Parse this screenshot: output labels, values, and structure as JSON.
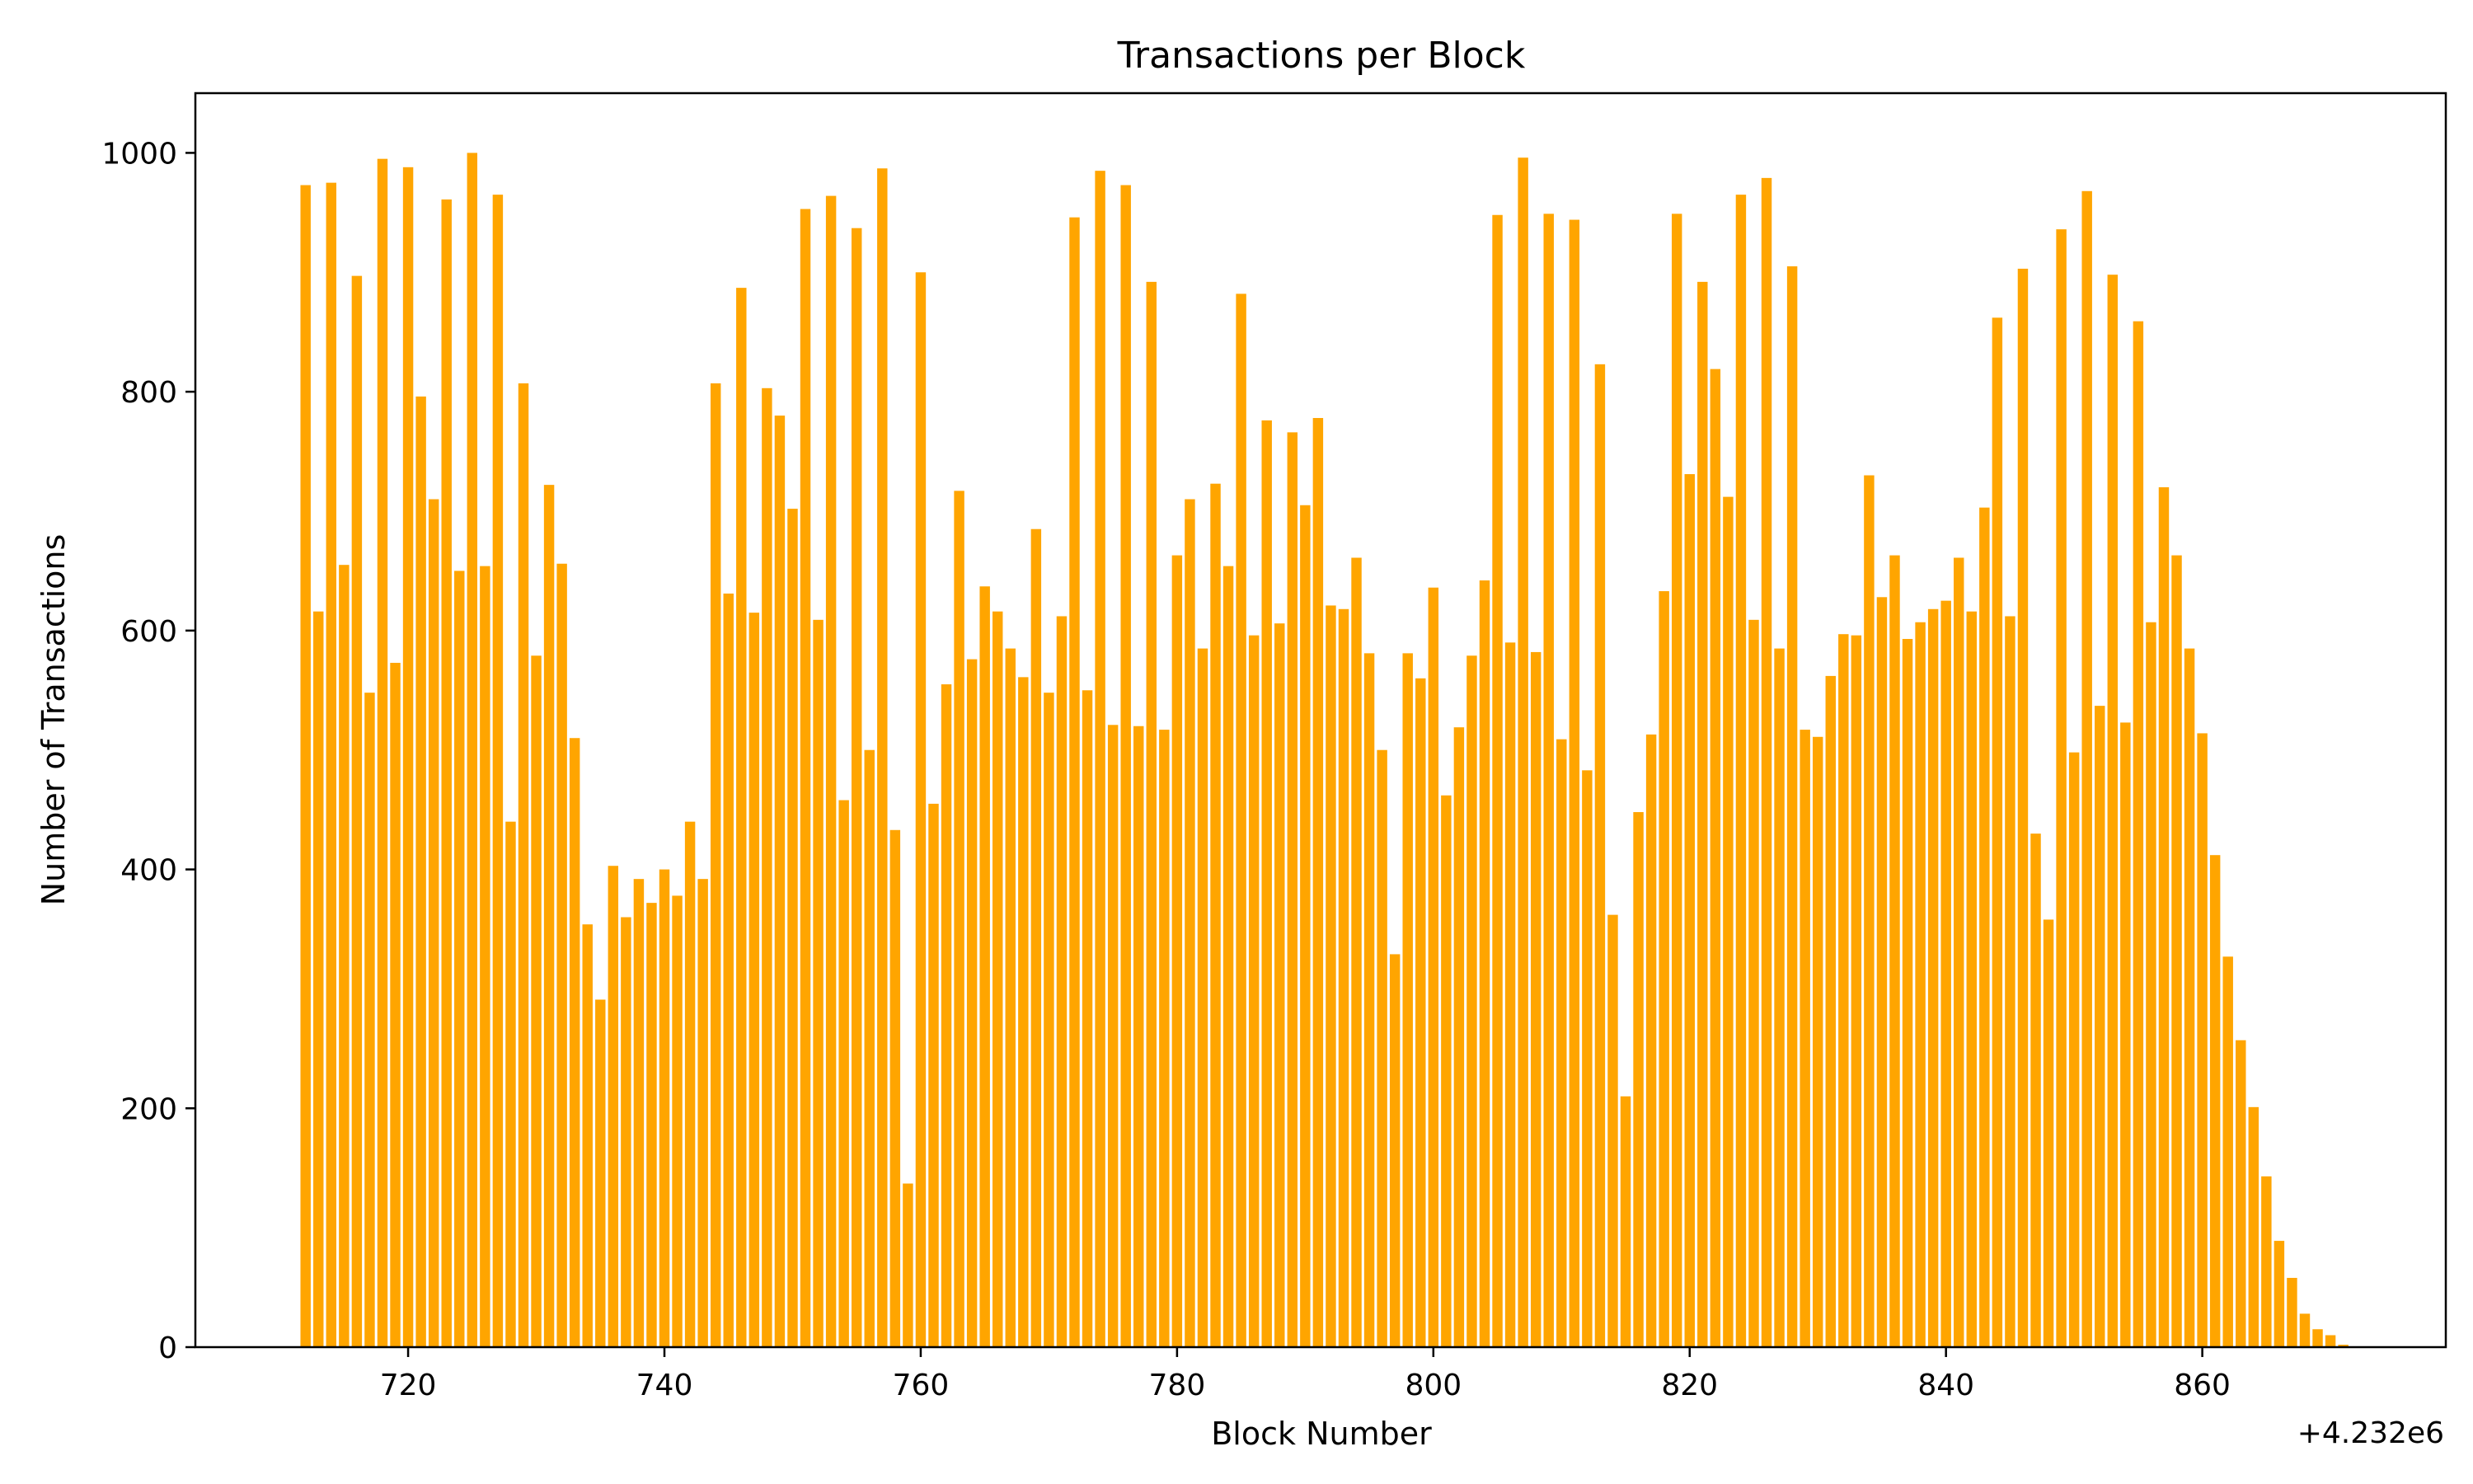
{
  "chart_data": {
    "type": "bar",
    "title": "Transactions per Block",
    "xlabel": "Block Number",
    "ylabel": "Number of Transactions",
    "offset_label": "+4.232e6",
    "bar_color": "#ffa500",
    "grid": false,
    "xlim": [
      4232703.4,
      4232879
    ],
    "ylim": [
      0,
      1050
    ],
    "x_ticks": [
      {
        "value": 4232720,
        "label": "720"
      },
      {
        "value": 4232740,
        "label": "740"
      },
      {
        "value": 4232760,
        "label": "760"
      },
      {
        "value": 4232780,
        "label": "780"
      },
      {
        "value": 4232800,
        "label": "800"
      },
      {
        "value": 4232820,
        "label": "820"
      },
      {
        "value": 4232840,
        "label": "840"
      },
      {
        "value": 4232860,
        "label": "860"
      }
    ],
    "y_ticks": [
      {
        "value": 0,
        "label": "0"
      },
      {
        "value": 200,
        "label": "200"
      },
      {
        "value": 400,
        "label": "400"
      },
      {
        "value": 600,
        "label": "600"
      },
      {
        "value": 800,
        "label": "800"
      },
      {
        "value": 1000,
        "label": "1000"
      }
    ],
    "x_start": 4232712,
    "values": [
      973,
      616,
      975,
      655,
      897,
      548,
      995,
      573,
      988,
      796,
      710,
      961,
      650,
      1000,
      654,
      965,
      440,
      807,
      579,
      722,
      656,
      510,
      354,
      291,
      403,
      360,
      392,
      372,
      400,
      378,
      440,
      392,
      807,
      631,
      887,
      615,
      803,
      780,
      702,
      953,
      609,
      964,
      458,
      937,
      500,
      987,
      433,
      137,
      900,
      455,
      555,
      717,
      576,
      637,
      616,
      585,
      561,
      685,
      548,
      612,
      946,
      550,
      985,
      521,
      973,
      520,
      892,
      517,
      663,
      710,
      585,
      723,
      654,
      882,
      596,
      776,
      606,
      766,
      705,
      778,
      621,
      618,
      661,
      581,
      500,
      329,
      581,
      560,
      636,
      462,
      519,
      579,
      642,
      948,
      590,
      996,
      582,
      949,
      509,
      944,
      483,
      823,
      362,
      210,
      448,
      513,
      633,
      949,
      731,
      892,
      819,
      712,
      965,
      609,
      979,
      585,
      905,
      517,
      511,
      562,
      597,
      596,
      730,
      628,
      663,
      593,
      607,
      618,
      625,
      661,
      616,
      703,
      862,
      612,
      903,
      430,
      358,
      936,
      498,
      968,
      537,
      898,
      523,
      859,
      607,
      720,
      663,
      585,
      514,
      412,
      327,
      257,
      201,
      143,
      89,
      58,
      28,
      15,
      10,
      2
    ]
  }
}
